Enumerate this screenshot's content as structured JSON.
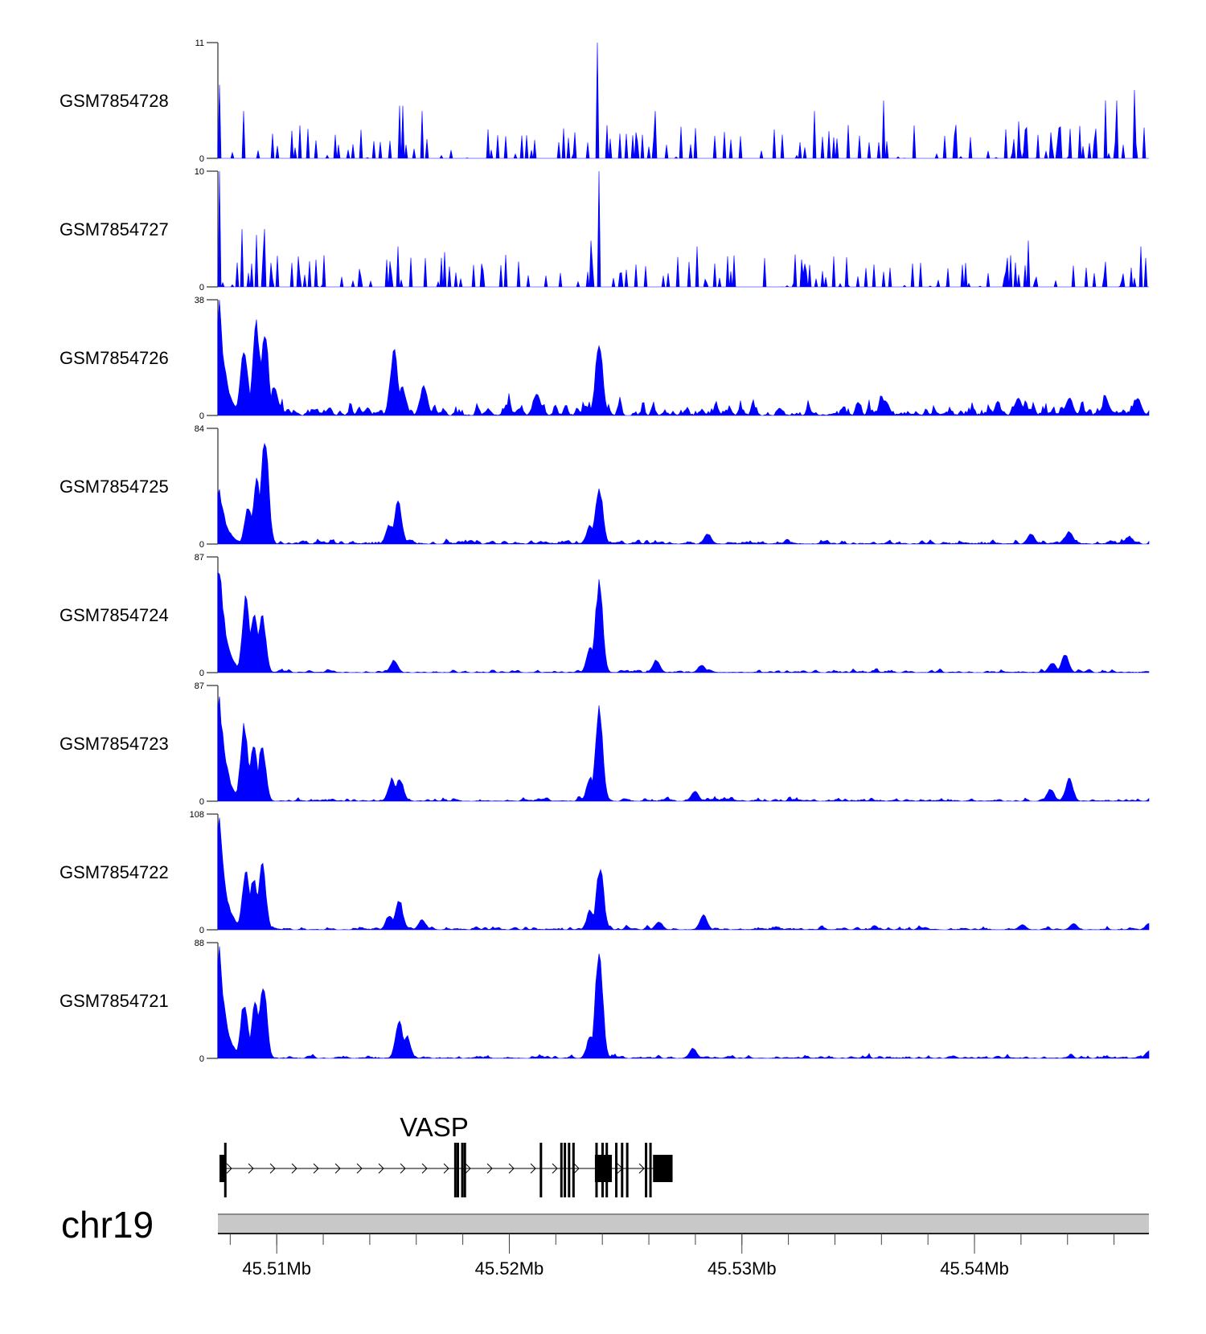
{
  "chart_data": {
    "type": "area",
    "title": "",
    "chromosome": "chr19",
    "xlim_mb": [
      45.50747,
      45.5475
    ],
    "x_ticks": [
      "45.51Mb",
      "45.52Mb",
      "45.53Mb",
      "45.54Mb"
    ],
    "x_tick_values_mb": [
      45.51,
      45.52,
      45.53,
      45.54
    ],
    "minor_tick_step_mb": 0.002,
    "fill_color": "#0000FF",
    "tracks": [
      {
        "name": "GSM7854728",
        "ymax": 11,
        "ymin_label": "0",
        "ymax_label": "11",
        "style": "spiky",
        "noise": 3.2,
        "peaks": [
          [
            45.50754,
            7
          ],
          [
            45.5086,
            4.5
          ],
          [
            45.51526,
            5
          ],
          [
            45.5154,
            5
          ],
          [
            45.51625,
            4.5
          ],
          [
            45.52382,
            11
          ],
          [
            45.52629,
            4.5
          ],
          [
            45.53313,
            4.5
          ],
          [
            45.53607,
            5.5
          ],
          [
            45.54188,
            3.5
          ],
          [
            45.54408,
            2.8
          ],
          [
            45.54566,
            5.5
          ],
          [
            45.5461,
            5.5
          ],
          [
            45.54691,
            6.5
          ]
        ]
      },
      {
        "name": "GSM7854727",
        "ymax": 10,
        "ymin_label": "0",
        "ymax_label": "10",
        "style": "spiky",
        "noise": 2.8,
        "peaks": [
          [
            45.50754,
            10
          ],
          [
            45.50849,
            5
          ],
          [
            45.50915,
            4.5
          ],
          [
            45.50945,
            5
          ],
          [
            45.51522,
            3.5
          ],
          [
            45.51724,
            3
          ],
          [
            45.52349,
            4
          ],
          [
            45.52386,
            10
          ],
          [
            45.52809,
            3.5
          ],
          [
            45.53232,
            2.8
          ],
          [
            45.54232,
            4
          ],
          [
            45.54713,
            3.5
          ]
        ]
      },
      {
        "name": "GSM7854726",
        "ymax": 38,
        "ymin_label": "0",
        "ymax_label": "38",
        "style": "smooth",
        "noise": 4,
        "peaks": [
          [
            45.50754,
            38
          ],
          [
            45.5086,
            24
          ],
          [
            45.50912,
            32
          ],
          [
            45.50949,
            28
          ],
          [
            45.50989,
            10
          ],
          [
            45.51504,
            23
          ],
          [
            45.5154,
            10
          ],
          [
            45.51632,
            10
          ],
          [
            45.52118,
            8
          ],
          [
            45.52386,
            25
          ],
          [
            45.53618,
            5
          ],
          [
            45.54188,
            6
          ],
          [
            45.54408,
            6
          ],
          [
            45.54702,
            6
          ]
        ]
      },
      {
        "name": "GSM7854725",
        "ymax": 84,
        "ymin_label": "0",
        "ymax_label": "84",
        "style": "smooth",
        "noise": 3,
        "peaks": [
          [
            45.50754,
            45
          ],
          [
            45.50879,
            30
          ],
          [
            45.50915,
            50
          ],
          [
            45.50949,
            84
          ],
          [
            45.51485,
            15
          ],
          [
            45.51522,
            33
          ],
          [
            45.52349,
            15
          ],
          [
            45.52386,
            45
          ],
          [
            45.52853,
            8
          ],
          [
            45.54243,
            8
          ],
          [
            45.54408,
            10
          ],
          [
            45.54665,
            6
          ]
        ]
      },
      {
        "name": "GSM7854724",
        "ymax": 87,
        "ymin_label": "0",
        "ymax_label": "87",
        "style": "smooth",
        "noise": 2,
        "peaks": [
          [
            45.50754,
            87
          ],
          [
            45.50868,
            60
          ],
          [
            45.50904,
            50
          ],
          [
            45.50937,
            45
          ],
          [
            45.51504,
            10
          ],
          [
            45.52349,
            20
          ],
          [
            45.52386,
            72
          ],
          [
            45.52632,
            10
          ],
          [
            45.52827,
            6
          ],
          [
            45.54335,
            8
          ],
          [
            45.5439,
            15
          ]
        ]
      },
      {
        "name": "GSM7854723",
        "ymax": 87,
        "ymin_label": "0",
        "ymax_label": "87",
        "style": "smooth",
        "noise": 2,
        "peaks": [
          [
            45.50754,
            87
          ],
          [
            45.5086,
            60
          ],
          [
            45.50901,
            45
          ],
          [
            45.50937,
            45
          ],
          [
            45.51496,
            18
          ],
          [
            45.51529,
            18
          ],
          [
            45.52349,
            20
          ],
          [
            45.52386,
            75
          ],
          [
            45.52798,
            8
          ],
          [
            45.54327,
            10
          ],
          [
            45.54408,
            18
          ]
        ]
      },
      {
        "name": "GSM7854722",
        "ymax": 108,
        "ymin_label": "0",
        "ymax_label": "108",
        "style": "smooth",
        "noise": 2.5,
        "peaks": [
          [
            45.50754,
            108
          ],
          [
            45.50868,
            62
          ],
          [
            45.50901,
            52
          ],
          [
            45.50937,
            65
          ],
          [
            45.51485,
            15
          ],
          [
            45.51526,
            30
          ],
          [
            45.51625,
            10
          ],
          [
            45.52349,
            20
          ],
          [
            45.5239,
            62
          ],
          [
            45.52643,
            8
          ],
          [
            45.52835,
            15
          ],
          [
            45.54206,
            5
          ],
          [
            45.54426,
            6
          ],
          [
            45.5475,
            6
          ]
        ]
      },
      {
        "name": "GSM7854721",
        "ymax": 88,
        "ymin_label": "0",
        "ymax_label": "88",
        "style": "smooth",
        "noise": 2,
        "peaks": [
          [
            45.50754,
            88
          ],
          [
            45.5086,
            45
          ],
          [
            45.50908,
            45
          ],
          [
            45.50941,
            62
          ],
          [
            45.51526,
            30
          ],
          [
            45.51559,
            18
          ],
          [
            45.52349,
            18
          ],
          [
            45.52386,
            88
          ],
          [
            45.5279,
            8
          ],
          [
            45.5475,
            6
          ]
        ]
      }
    ],
    "gene": {
      "name": "VASP",
      "strand": "+",
      "start_mb": 45.50754,
      "end_mb": 45.52702,
      "blocks_mb": [
        [
          45.50754,
          45.50776
        ],
        [
          45.52368,
          45.52441
        ],
        [
          45.52618,
          45.52702
        ]
      ],
      "exon_lines_mb": [
        45.50779,
        45.51768,
        45.51779,
        45.51798,
        45.51809,
        45.52136,
        45.52224,
        45.52239,
        45.52257,
        45.52276,
        45.52375,
        45.52401,
        45.52419,
        45.5246,
        45.52485,
        45.52507,
        45.52588,
        45.52607
      ]
    }
  }
}
